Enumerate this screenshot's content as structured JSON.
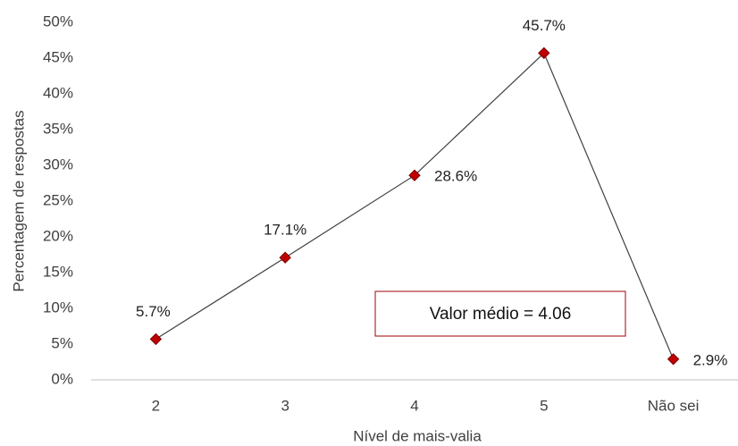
{
  "chart_data": {
    "type": "line",
    "categories": [
      "2",
      "3",
      "4",
      "5",
      "Não sei"
    ],
    "series": [
      {
        "name": "Percentagem de respostas",
        "color": "#c00000",
        "values": [
          5.7,
          17.1,
          28.6,
          45.7,
          2.9
        ],
        "value_labels": [
          "5.7%",
          "17.1%",
          "28.6%",
          "45.7%",
          "2.9%"
        ]
      }
    ],
    "ylim": [
      0,
      50
    ],
    "yticks": [
      {
        "value": 0,
        "label": "0%"
      },
      {
        "value": 5,
        "label": "5%"
      },
      {
        "value": 10,
        "label": "10%"
      },
      {
        "value": 15,
        "label": "15%"
      },
      {
        "value": 20,
        "label": "20%"
      },
      {
        "value": 25,
        "label": "25%"
      },
      {
        "value": 30,
        "label": "30%"
      },
      {
        "value": 35,
        "label": "35%"
      },
      {
        "value": 40,
        "label": "40%"
      },
      {
        "value": 45,
        "label": "45%"
      },
      {
        "value": 50,
        "label": "50%"
      }
    ],
    "xlabel": "Nível de mais-valia",
    "ylabel": "Percentagem de respostas",
    "annotation": "Valor médio = 4.06",
    "grid": false
  }
}
